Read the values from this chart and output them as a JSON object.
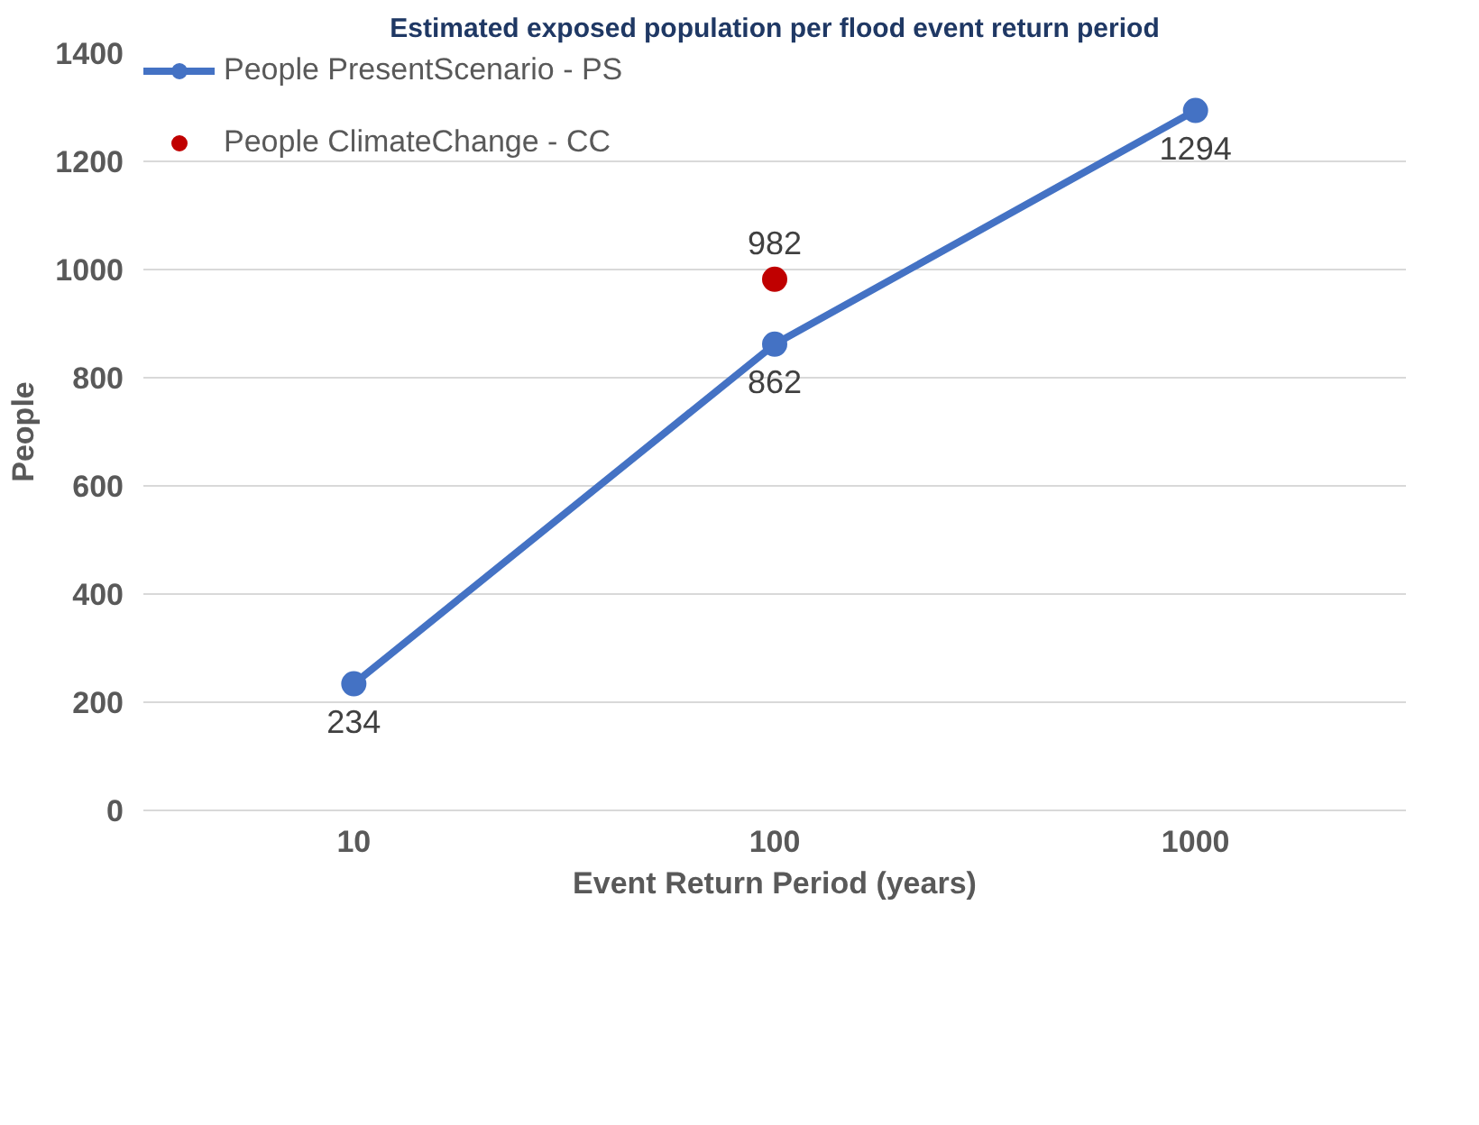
{
  "chart_data": {
    "type": "line",
    "title": "Estimated exposed population per flood event return period",
    "xlabel": "Event Return Period (years)",
    "ylabel": "People",
    "categories": [
      "10",
      "100",
      "1000"
    ],
    "series": [
      {
        "name": "People PresentScenario - PS",
        "color": "#4472c4",
        "values": [
          234,
          862,
          1294
        ]
      },
      {
        "name": "People ClimateChange - CC",
        "color": "#c00000",
        "type": "scatter",
        "values": [
          null,
          982,
          null
        ]
      }
    ],
    "ylim": [
      0,
      1400
    ],
    "yticks": [
      0,
      200,
      400,
      600,
      800,
      1000,
      1200,
      1400
    ],
    "grid": "y",
    "legend": "top left",
    "marker": "circle",
    "data_labels": true
  }
}
